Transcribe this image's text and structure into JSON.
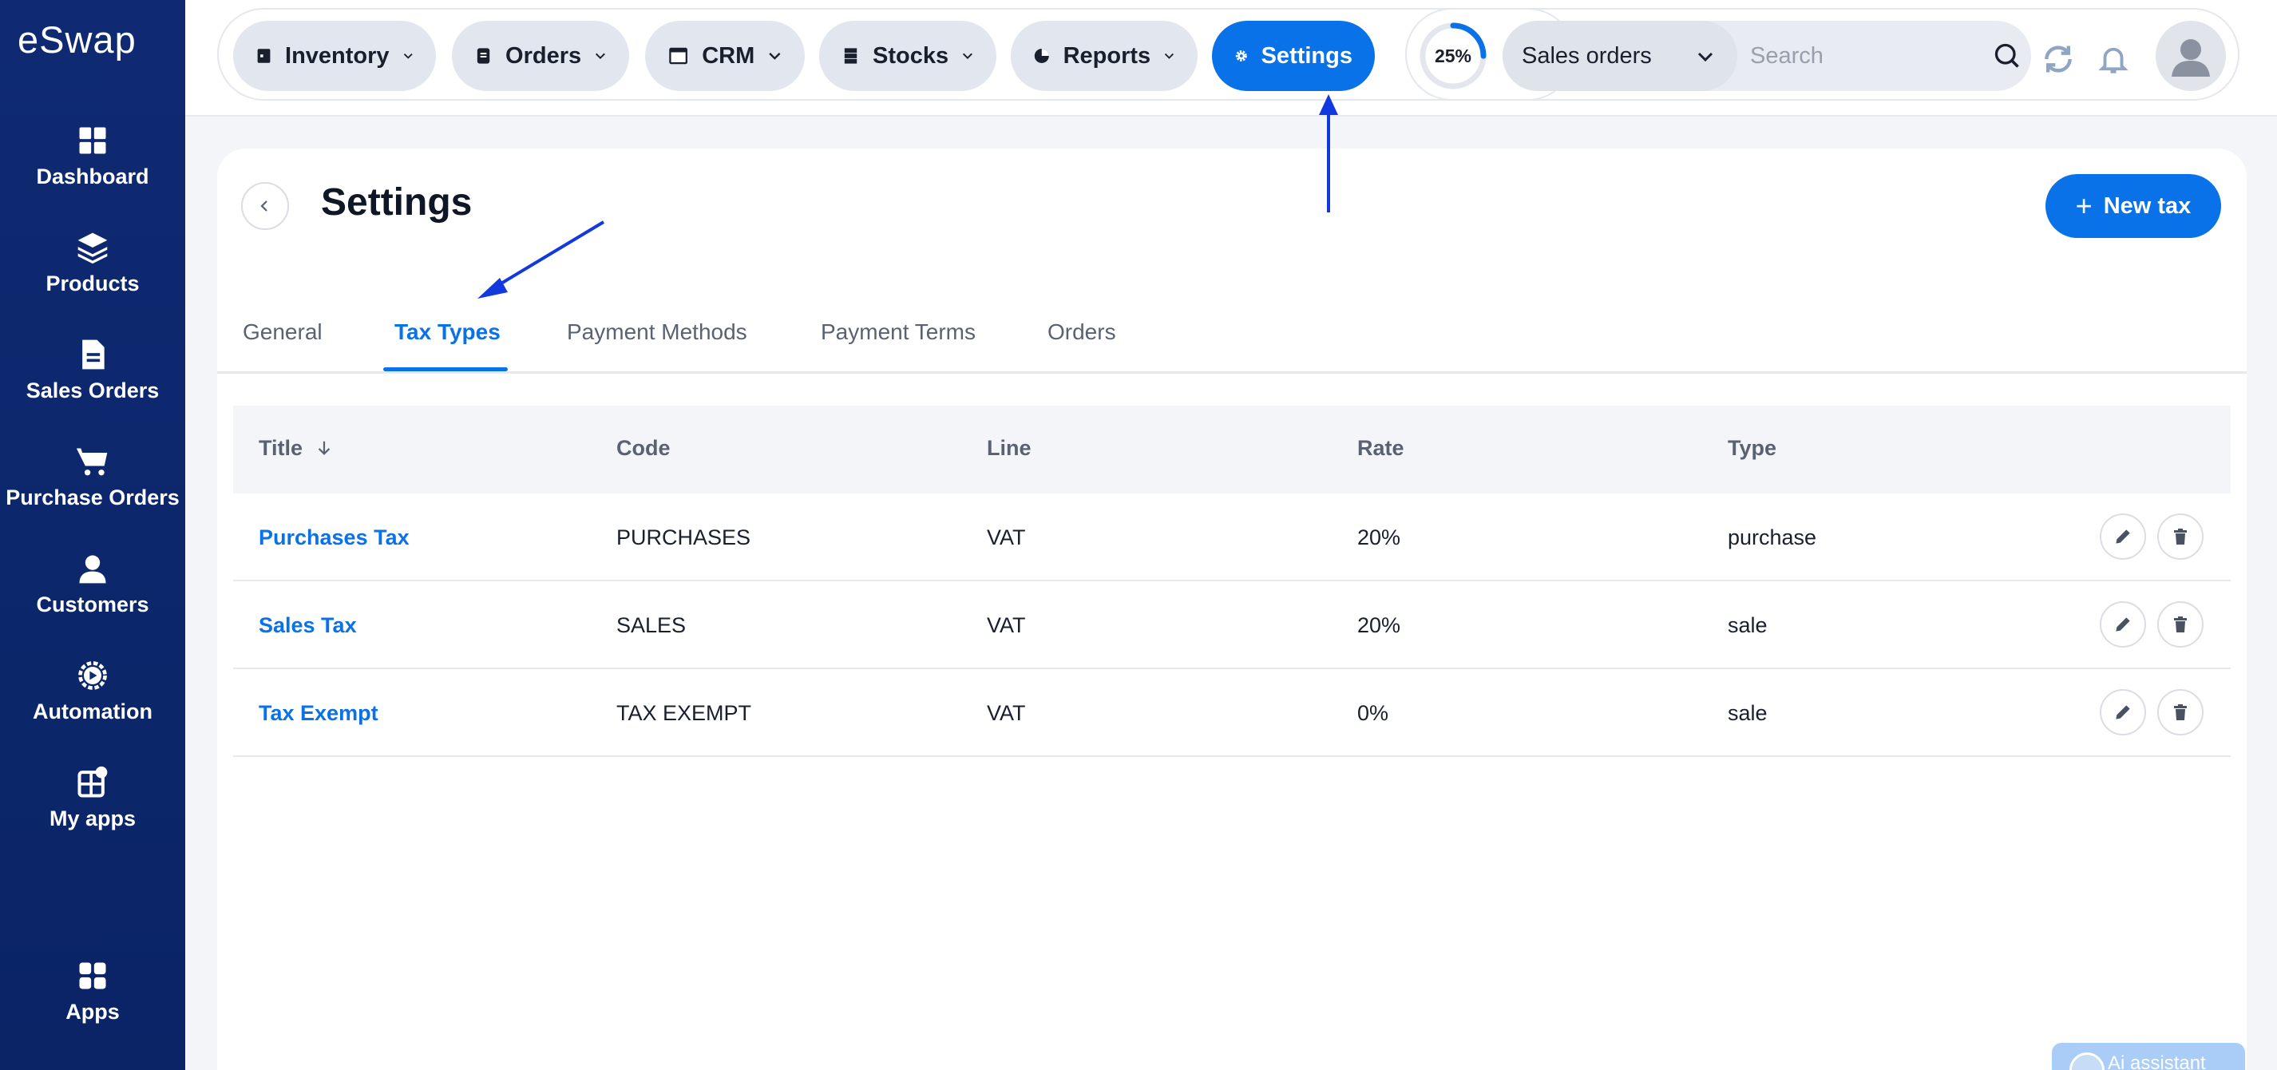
{
  "app": {
    "logo": "eSwap"
  },
  "sidebar": {
    "items": [
      {
        "label": "Dashboard",
        "icon": "dashboard-icon"
      },
      {
        "label": "Products",
        "icon": "layers-icon"
      },
      {
        "label": "Sales Orders",
        "icon": "document-icon"
      },
      {
        "label": "Purchase Orders",
        "icon": "cart-icon"
      },
      {
        "label": "Customers",
        "icon": "user-icon"
      },
      {
        "label": "Automation",
        "icon": "gear-play-icon"
      },
      {
        "label": "My apps",
        "icon": "apps-plus-icon"
      },
      {
        "label": "Apps",
        "icon": "grid-icon"
      }
    ]
  },
  "topnav": {
    "items": [
      {
        "label": "Inventory",
        "icon": "inventory-icon"
      },
      {
        "label": "Orders",
        "icon": "orders-icon"
      },
      {
        "label": "CRM",
        "icon": "crm-icon"
      },
      {
        "label": "Stocks",
        "icon": "stocks-icon"
      },
      {
        "label": "Reports",
        "icon": "pie-chart-icon"
      },
      {
        "label": "Settings",
        "icon": "gear-icon",
        "active": true
      }
    ]
  },
  "header": {
    "progress": "25%",
    "progress_value": 0.25,
    "search_scope": "Sales orders",
    "search_placeholder": "Search"
  },
  "page": {
    "title": "Settings",
    "new_button": "New tax",
    "tabs": [
      "General",
      "Tax Types",
      "Payment Methods",
      "Payment Terms",
      "Orders"
    ],
    "active_tab": "Tax Types"
  },
  "table": {
    "columns": [
      "Title",
      "Code",
      "Line",
      "Rate",
      "Type"
    ],
    "rows": [
      {
        "title": "Purchases Tax",
        "code": "PURCHASES",
        "line": "VAT",
        "rate": "20%",
        "type": "purchase"
      },
      {
        "title": "Sales Tax",
        "code": "SALES",
        "line": "VAT",
        "rate": "20%",
        "type": "sale"
      },
      {
        "title": "Tax Exempt",
        "code": "TAX EXEMPT",
        "line": "VAT",
        "rate": "0%",
        "type": "sale"
      }
    ]
  },
  "ai": {
    "label": "Ai assistant"
  },
  "colors": {
    "accent": "#0a72e8",
    "sidebar": "#0f2a72",
    "annotation": "#1238e0"
  }
}
